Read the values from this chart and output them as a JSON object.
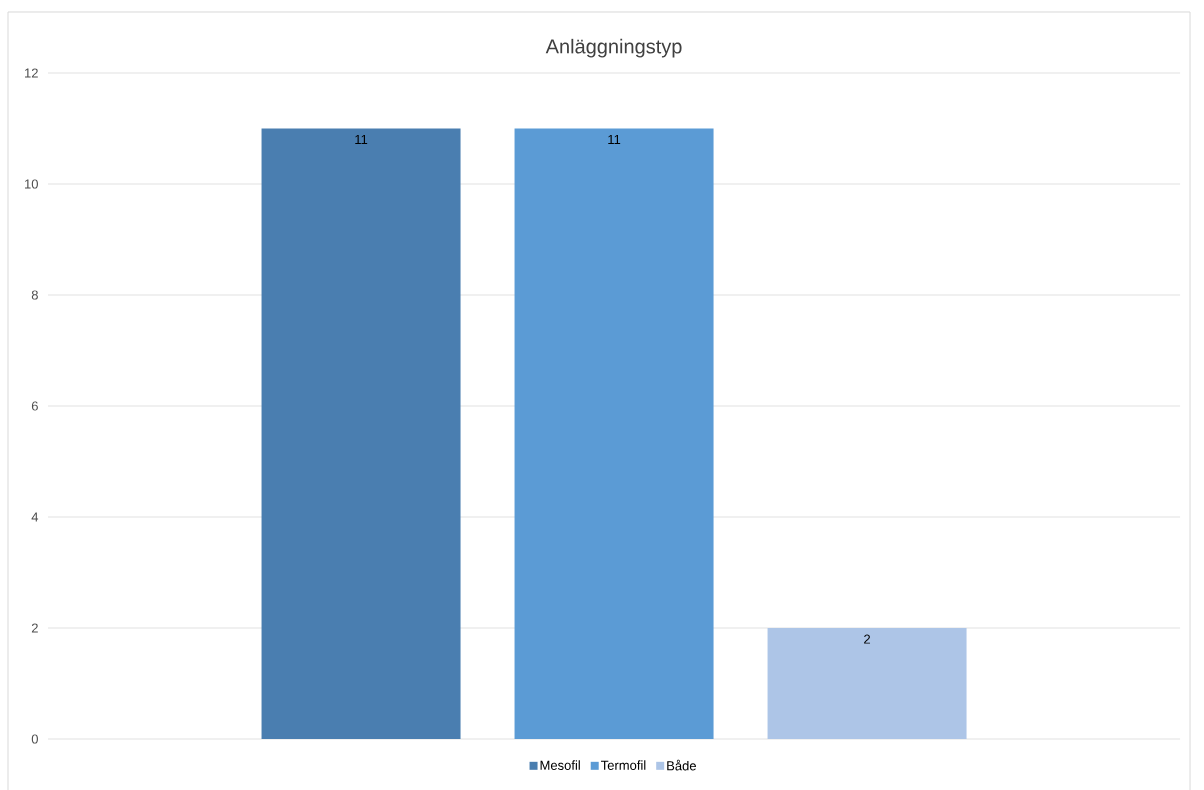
{
  "chart_data": {
    "type": "bar",
    "title": "Anläggningstyp",
    "categories": [
      null
    ],
    "series": [
      {
        "name": "Mesofil",
        "color": "#4a7eb0",
        "values": [
          11
        ]
      },
      {
        "name": "Termofil",
        "color": "#5b9bd5",
        "values": [
          11
        ]
      },
      {
        "name": "Både",
        "color": "#adc5e7",
        "values": [
          2
        ]
      }
    ],
    "ylim": [
      0,
      12
    ],
    "yticks": [
      0,
      2,
      4,
      6,
      8,
      10,
      12
    ],
    "grid": "y",
    "legend": "bottom",
    "data_labels": true
  }
}
